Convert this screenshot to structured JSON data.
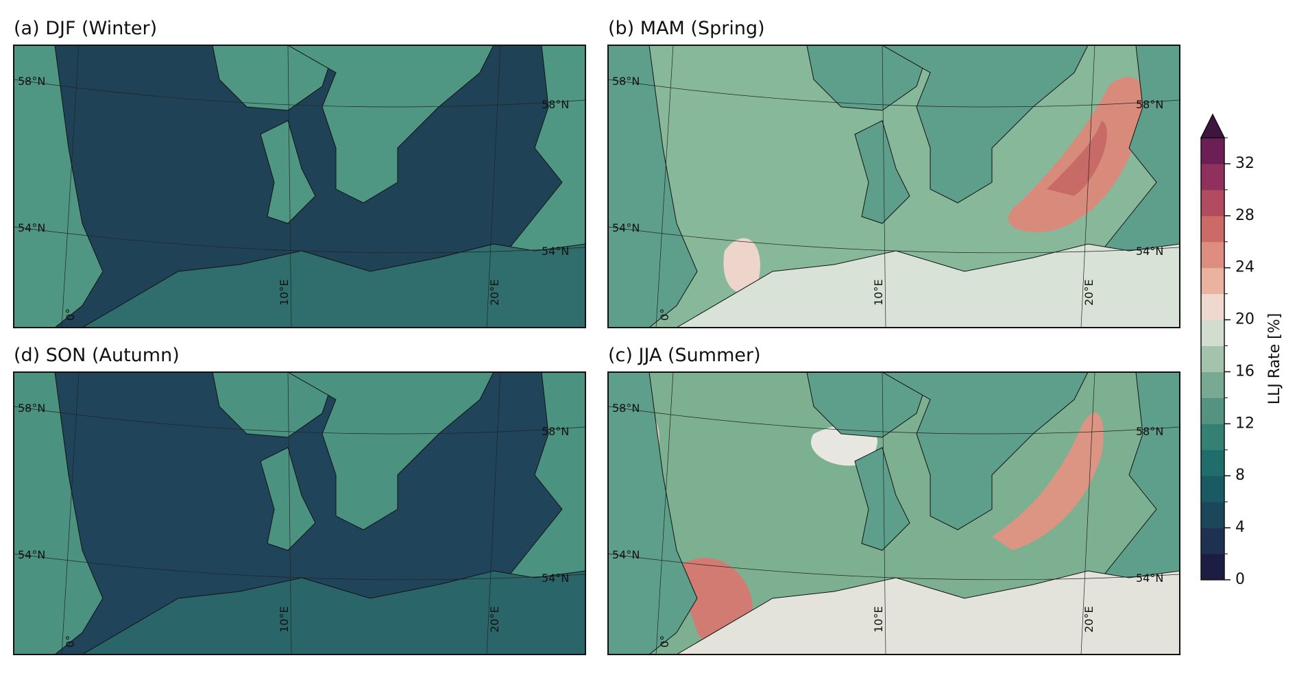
{
  "panels": [
    {
      "title": "(a) DJF (Winter)",
      "lat_labels": [
        "58°N",
        "58°N",
        "54°N",
        "54°N"
      ],
      "lon_labels": [
        "0°",
        "10°E",
        "20°E"
      ]
    },
    {
      "title": "(b) MAM (Spring)",
      "lat_labels": [
        "58°N",
        "58°N",
        "54°N",
        "54°N"
      ],
      "lon_labels": [
        "0°",
        "10°E",
        "20°E"
      ]
    },
    {
      "title": "(d) SON (Autumn)",
      "lat_labels": [
        "58°N",
        "58°N",
        "54°N",
        "54°N"
      ],
      "lon_labels": [
        "0°",
        "10°E",
        "20°E"
      ]
    },
    {
      "title": "(c) JJA (Summer)",
      "lat_labels": [
        "58°N",
        "58°N",
        "54°N",
        "54°N"
      ],
      "lon_labels": [
        "0°",
        "10°E",
        "20°E"
      ]
    }
  ],
  "colorbar": {
    "label": "LLJ Rate [%]",
    "lim": [
      0,
      34
    ],
    "ticks": [
      0,
      4,
      8,
      12,
      16,
      20,
      24,
      28,
      32
    ],
    "colors": [
      "#1b1d43",
      "#1e3150",
      "#1c475b",
      "#1a5b63",
      "#1f6e6b",
      "#348073",
      "#54937f",
      "#78aa93",
      "#a3c3ac",
      "#d2ddd0",
      "#efd9cf",
      "#e9b3a0",
      "#de8e7e",
      "#cc6a68",
      "#b24a60",
      "#8f305d",
      "#6b1f55"
    ],
    "extend_color": "#3d1540"
  }
}
